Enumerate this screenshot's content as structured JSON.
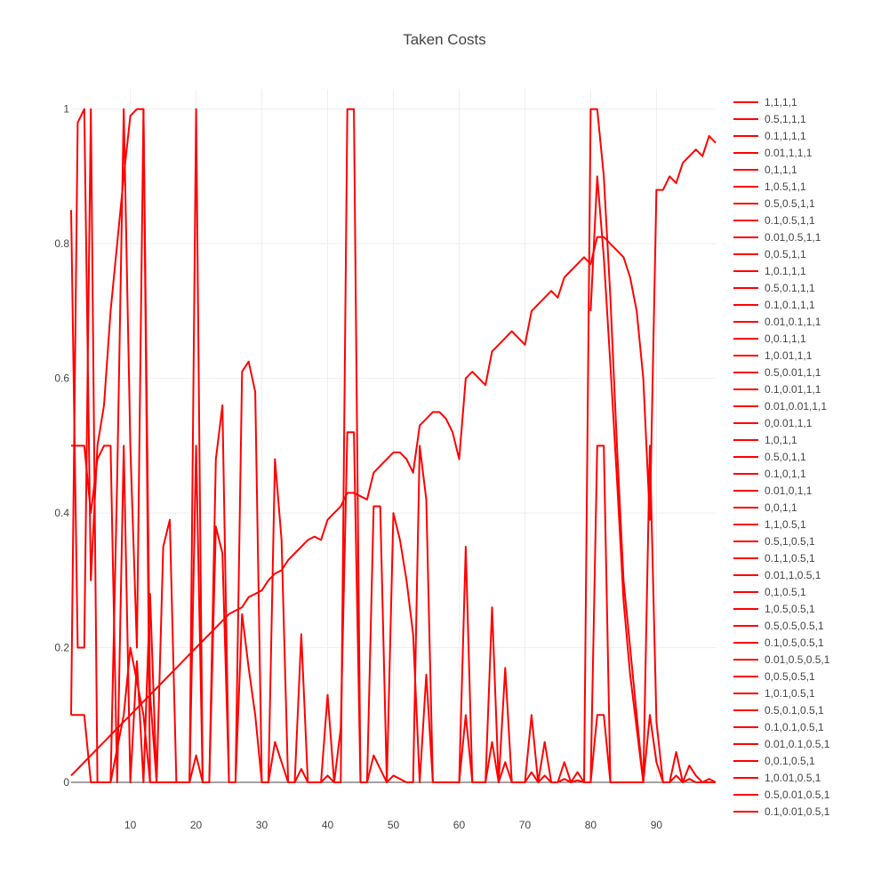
{
  "chart_data": {
    "type": "line",
    "title": "Taken Costs",
    "xlabel": "",
    "ylabel": "",
    "xlim": [
      1,
      99
    ],
    "ylim": [
      0,
      1.03
    ],
    "x_ticks": [
      10,
      20,
      30,
      40,
      50,
      60,
      70,
      80,
      90
    ],
    "y_ticks": [
      0,
      0.2,
      0.4,
      0.6,
      0.8,
      1
    ],
    "y_tick_labels": [
      "0",
      "0.2",
      "0.4",
      "0.6",
      "0.8",
      "1"
    ],
    "grid": true,
    "legend_position": "right",
    "line_color": "#ff0000",
    "legend": [
      "1,1,1,1",
      "0.5,1,1,1",
      "0.1,1,1,1",
      "0.01,1,1,1",
      "0,1,1,1",
      "1,0.5,1,1",
      "0.5,0.5,1,1",
      "0.1,0.5,1,1",
      "0.01,0.5,1,1",
      "0,0.5,1,1",
      "1,0.1,1,1",
      "0.5,0.1,1,1",
      "0.1,0.1,1,1",
      "0.01,0.1,1,1",
      "0,0.1,1,1",
      "1,0.01,1,1",
      "0.5,0.01,1,1",
      "0.1,0.01,1,1",
      "0.01,0.01,1,1",
      "0,0.01,1,1",
      "1,0,1,1",
      "0.5,0,1,1",
      "0.1,0,1,1",
      "0.01,0,1,1",
      "0,0,1,1",
      "1,1,0.5,1",
      "0.5,1,0.5,1",
      "0.1,1,0.5,1",
      "0.01,1,0.5,1",
      "0,1,0.5,1",
      "1,0.5,0.5,1",
      "0.5,0.5,0.5,1",
      "0.1,0.5,0.5,1",
      "0.01,0.5,0.5,1",
      "0,0.5,0.5,1",
      "1,0.1,0.5,1",
      "0.5,0.1,0.5,1",
      "0.1,0.1,0.5,1",
      "0.01,0.1,0.5,1",
      "0,0.1,0.5,1",
      "1,0.01,0.5,1",
      "0.5,0.01,0.5,1",
      "0.1,0.01,0.5,1"
    ],
    "series": [
      {
        "x": [
          1,
          2,
          3,
          4,
          5,
          6,
          7,
          8,
          9,
          10,
          11,
          12,
          13,
          14,
          15,
          16,
          17,
          18,
          19,
          20,
          21,
          22,
          23,
          24,
          25,
          26,
          27,
          28,
          29,
          30,
          31,
          32,
          33,
          34,
          35,
          36,
          37,
          38,
          39,
          40,
          41,
          42,
          43,
          44,
          45,
          46,
          47,
          48,
          49,
          50,
          51,
          52,
          53,
          54,
          55,
          56,
          57,
          58,
          59,
          60,
          61,
          62,
          63,
          64,
          65,
          66,
          67,
          68,
          69,
          70,
          71,
          72,
          73,
          74,
          75,
          76,
          77,
          78,
          79,
          80,
          81,
          82,
          83,
          84,
          85,
          86,
          87,
          88,
          89,
          90,
          91,
          92,
          93,
          94,
          95,
          96,
          97,
          98,
          99
        ],
        "y": [
          0.01,
          0.02,
          0.03,
          0.04,
          0.05,
          0.06,
          0.07,
          0.08,
          0.09,
          0.1,
          0.11,
          0.12,
          0.13,
          0.14,
          0.15,
          0.16,
          0.17,
          0.18,
          0.19,
          0.2,
          0.21,
          0.22,
          0.23,
          0.24,
          0.25,
          0.255,
          0.26,
          0.275,
          0.28,
          0.285,
          0.3,
          0.31,
          0.315,
          0.33,
          0.34,
          0.35,
          0.36,
          0.365,
          0.36,
          0.39,
          0.4,
          0.41,
          0.43,
          0.43,
          0.425,
          0.42,
          0.46,
          0.47,
          0.48,
          0.49,
          0.49,
          0.48,
          0.46,
          0.53,
          0.54,
          0.55,
          0.55,
          0.54,
          0.52,
          0.48,
          0.6,
          0.61,
          0.6,
          0.59,
          0.64,
          0.65,
          0.66,
          0.67,
          0.66,
          0.65,
          0.7,
          0.71,
          0.72,
          0.73,
          0.72,
          0.75,
          0.76,
          0.77,
          0.78,
          0.77,
          0.81,
          0.81,
          0.8,
          0.79,
          0.78,
          0.75,
          0.7,
          0.6,
          0.39,
          0.88,
          0.88,
          0.9,
          0.89,
          0.92,
          0.93,
          0.94,
          0.93,
          0.96,
          0.95
        ]
      },
      {
        "x": [
          1,
          2,
          3,
          4,
          5,
          6,
          7,
          8,
          9,
          10,
          11,
          12,
          13,
          14,
          15,
          16,
          17,
          18,
          19,
          20,
          21
        ],
        "y": [
          0.1,
          0.98,
          1.0,
          0.3,
          0.5,
          0.56,
          0.7,
          0.8,
          0.9,
          0.99,
          1.0,
          1.0,
          0,
          0,
          0,
          0,
          0,
          0,
          0,
          1.0,
          0
        ]
      },
      {
        "x": [
          1,
          2,
          3,
          4,
          5,
          6,
          7,
          8,
          9,
          10,
          11,
          12,
          13,
          14,
          15,
          16,
          17,
          18,
          19,
          20,
          21,
          22,
          23,
          24,
          25
        ],
        "y": [
          0.5,
          0.5,
          0.5,
          0.4,
          0.48,
          0.5,
          0.5,
          0,
          0.5,
          0,
          0.18,
          0,
          0.28,
          0,
          0.35,
          0.39,
          0,
          0,
          0,
          0.5,
          0,
          0,
          0.38,
          0.34,
          0
        ]
      },
      {
        "x": [
          26,
          27,
          28,
          29,
          30,
          31,
          32,
          33,
          34,
          35,
          36,
          37,
          38,
          39,
          40,
          41,
          42,
          43,
          44,
          45,
          46,
          47,
          48,
          49,
          50,
          51,
          52,
          53,
          54,
          55,
          56,
          57
        ],
        "y": [
          0,
          0.61,
          0.625,
          0.58,
          0,
          0,
          0.48,
          0.36,
          0,
          0,
          0.22,
          0,
          0,
          0,
          0.13,
          0,
          0,
          1.0,
          1.0,
          0,
          0,
          0.41,
          0.41,
          0,
          0.4,
          0.36,
          0.3,
          0.22,
          0,
          0.16,
          0,
          0
        ]
      },
      {
        "x": [
          19,
          20,
          21,
          22,
          23,
          24,
          25,
          26,
          27,
          28,
          29,
          30,
          31,
          32,
          33,
          34,
          35,
          36,
          37,
          38,
          39,
          40,
          41,
          42,
          43,
          44,
          45,
          46,
          47,
          48,
          49,
          50,
          51,
          52,
          53,
          54,
          55,
          56
        ],
        "y": [
          0,
          0.04,
          0,
          0,
          0.48,
          0.56,
          0,
          0,
          0.25,
          0.17,
          0.1,
          0,
          0,
          0.06,
          0.03,
          0,
          0,
          0.02,
          0,
          0,
          0,
          0.01,
          0,
          0.08,
          0.52,
          0.52,
          0,
          0,
          0.04,
          0.02,
          0,
          0.01,
          0.005,
          0,
          0,
          0.5,
          0.42,
          0
        ]
      },
      {
        "x": [
          1,
          2,
          3,
          4,
          5,
          6,
          7,
          8,
          9,
          10,
          11,
          12,
          13
        ],
        "y": [
          0.1,
          0.1,
          0.1,
          0,
          0,
          0,
          0,
          0.05,
          0.1,
          0.2,
          0.15,
          0.1,
          0
        ]
      },
      {
        "x": [
          57,
          58,
          59,
          60,
          61,
          62,
          63,
          64,
          65,
          66,
          67,
          68,
          69,
          70,
          71,
          72,
          73,
          74,
          75,
          76,
          77,
          78,
          79,
          80,
          81,
          82,
          83,
          84,
          85,
          86,
          87,
          88,
          89,
          90,
          91,
          92,
          93,
          94,
          95,
          96,
          97,
          98,
          99
        ],
        "y": [
          0,
          0,
          0,
          0,
          0.35,
          0,
          0,
          0,
          0.26,
          0,
          0.17,
          0,
          0,
          0,
          0.1,
          0,
          0.06,
          0,
          0,
          0.03,
          0,
          0.015,
          0,
          0,
          0.5,
          0.5,
          0,
          0,
          0,
          0,
          0,
          0,
          0.5,
          0.09,
          0,
          0,
          0.045,
          0,
          0.025,
          0.01,
          0,
          0.005,
          0
        ]
      },
      {
        "x": [
          57,
          58,
          59,
          60,
          61,
          62,
          63,
          64,
          65,
          66,
          67,
          68,
          69,
          70,
          71,
          72,
          73,
          74,
          75,
          76,
          77,
          78,
          79,
          80,
          81,
          82,
          83,
          84,
          85,
          86,
          87,
          88,
          89,
          90,
          91,
          92,
          93,
          94,
          95,
          96,
          97,
          98,
          99
        ],
        "y": [
          0,
          0,
          0,
          0,
          0.1,
          0,
          0,
          0,
          0.06,
          0,
          0.03,
          0,
          0,
          0,
          0.015,
          0,
          0.01,
          0,
          0,
          0.005,
          0,
          0.003,
          0,
          0,
          0.1,
          0.1,
          0,
          0,
          0,
          0,
          0,
          0,
          0.1,
          0.03,
          0,
          0,
          0.01,
          0,
          0.005,
          0,
          0,
          0,
          0
        ]
      },
      {
        "x": [
          79,
          80,
          81,
          82,
          83,
          84,
          85,
          86,
          87,
          88
        ],
        "y": [
          0,
          1.0,
          1.0,
          0.9,
          0.72,
          0.5,
          0.3,
          0.2,
          0.1,
          0
        ]
      },
      {
        "x": [
          80,
          81,
          82,
          83,
          84,
          85,
          86,
          87,
          88
        ],
        "y": [
          0.7,
          0.9,
          0.78,
          0.62,
          0.45,
          0.27,
          0.16,
          0.08,
          0
        ]
      },
      {
        "x": [
          1,
          2,
          3,
          4,
          5,
          6,
          7,
          8,
          9,
          10,
          11,
          12,
          13,
          14
        ],
        "y": [
          0.85,
          0.2,
          0.2,
          1.0,
          0,
          0,
          0,
          0.45,
          1.0,
          0.5,
          0.2,
          1.0,
          0.13,
          0
        ]
      }
    ]
  }
}
